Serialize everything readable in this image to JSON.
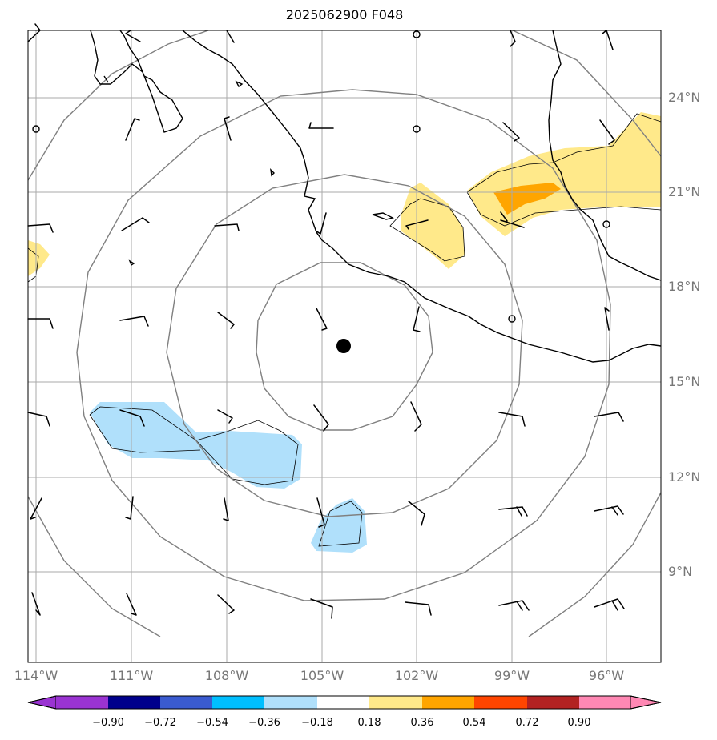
{
  "title": "2025062900 F048",
  "lat_labels": [
    "24°N",
    "21°N",
    "18°N",
    "15°N",
    "12°N",
    "9°N"
  ],
  "lon_labels": [
    "114°W",
    "111°W",
    "108°W",
    "105°W",
    "102°W",
    "99°W",
    "96°W"
  ],
  "colorbar": {
    "labels": [
      "−0.90",
      "−0.72",
      "−0.54",
      "−0.36",
      "−0.18",
      "0.18",
      "0.36",
      "0.54",
      "0.72",
      "0.90"
    ],
    "colors": [
      "#9a33d2",
      "#00008b",
      "#3a5bd0",
      "#00bfff",
      "#b0e0fb",
      "#ffffff",
      "#ffe98a",
      "#ffa500",
      "#ff4500",
      "#b22222",
      "#ff88b4"
    ]
  },
  "map": {
    "gridline_color": "#aaaaaa",
    "ring_color": "#808080",
    "positive_fill": "#ffe98a",
    "strong_positive_fill": "#ffa500",
    "negative_fill": "#b0e0fb",
    "center_marker": "storm-center"
  }
}
